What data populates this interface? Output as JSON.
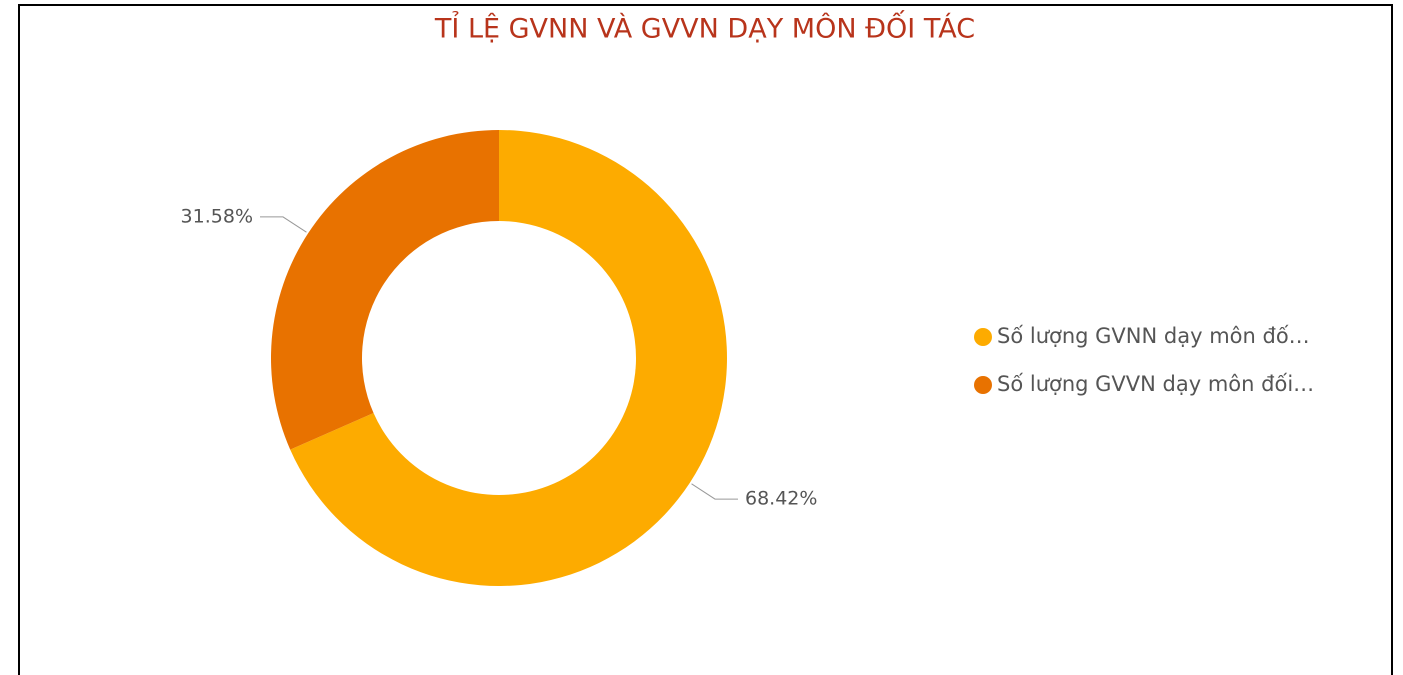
{
  "chart_data": {
    "type": "donut",
    "title": "TỈ LỆ GVNN VÀ GVVN DẠY MÔN ĐỐI TÁC",
    "series": [
      {
        "name": "Số lượng GVNN dạy môn đố…",
        "color": "#FDAB00",
        "values": [
          68.42
        ],
        "value_labels": [
          "68.42%"
        ]
      },
      {
        "name": "Số lượng GVVN dạy môn đối…",
        "color": "#E87200",
        "values": [
          31.58
        ],
        "value_labels": [
          "31.58%"
        ]
      }
    ],
    "legend": "right"
  }
}
